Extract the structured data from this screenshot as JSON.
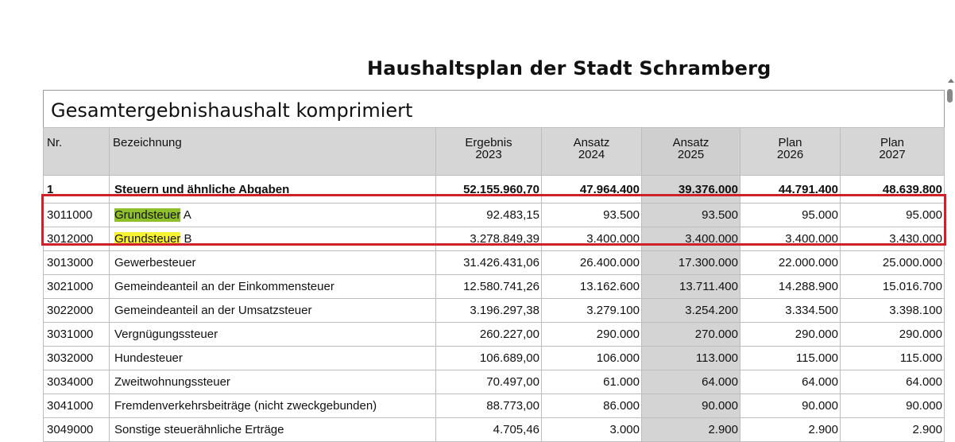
{
  "document": {
    "title": "Haushaltsplan der Stadt Schramberg",
    "section_title": "Gesamtergebnishaushalt komprimiert"
  },
  "table": {
    "headers": {
      "nr": "Nr.",
      "bezeichnung": "Bezeichnung",
      "cols": [
        {
          "l1": "Ergebnis",
          "l2": "2023"
        },
        {
          "l1": "Ansatz",
          "l2": "2024"
        },
        {
          "l1": "Ansatz",
          "l2": "2025"
        },
        {
          "l1": "Plan",
          "l2": "2026"
        },
        {
          "l1": "Plan",
          "l2": "2027"
        }
      ]
    },
    "rows": [
      {
        "nr": "1",
        "name": "Steuern und ähnliche Abgaben",
        "v": [
          "52.155.960,70",
          "47.964.400",
          "39.376.000",
          "44.791.400",
          "48.639.800"
        ]
      },
      {
        "nr": "3011000",
        "name_hl": "Grundsteuer",
        "name_rest": " A",
        "v": [
          "92.483,15",
          "93.500",
          "93.500",
          "95.000",
          "95.000"
        ]
      },
      {
        "nr": "3012000",
        "name_hl": "Grundsteuer",
        "name_rest": " B",
        "v": [
          "3.278.849,39",
          "3.400.000",
          "3.400.000",
          "3.400.000",
          "3.430.000"
        ]
      },
      {
        "nr": "3013000",
        "name": "Gewerbesteuer",
        "v": [
          "31.426.431,06",
          "26.400.000",
          "17.300.000",
          "22.000.000",
          "25.000.000"
        ]
      },
      {
        "nr": "3021000",
        "name": "Gemeindeanteil an der Einkommensteuer",
        "v": [
          "12.580.741,26",
          "13.162.600",
          "13.711.400",
          "14.288.900",
          "15.016.700"
        ]
      },
      {
        "nr": "3022000",
        "name": "Gemeindeanteil an der Umsatzsteuer",
        "v": [
          "3.196.297,38",
          "3.279.100",
          "3.254.200",
          "3.334.500",
          "3.398.100"
        ]
      },
      {
        "nr": "3031000",
        "name": "Vergnügungssteuer",
        "v": [
          "260.227,00",
          "290.000",
          "270.000",
          "290.000",
          "290.000"
        ]
      },
      {
        "nr": "3032000",
        "name": "Hundesteuer",
        "v": [
          "106.689,00",
          "106.000",
          "113.000",
          "115.000",
          "115.000"
        ]
      },
      {
        "nr": "3034000",
        "name": "Zweitwohnungssteuer",
        "v": [
          "70.497,00",
          "61.000",
          "64.000",
          "64.000",
          "64.000"
        ]
      },
      {
        "nr": "3041000",
        "name": "Fremdenverkehrsbeiträge (nicht zweckgebunden)",
        "v": [
          "88.773,00",
          "86.000",
          "90.000",
          "90.000",
          "90.000"
        ]
      },
      {
        "nr": "3049000",
        "name": "Sonstige steuerähnliche Erträge",
        "v": [
          "4.705,46",
          "3.000",
          "2.900",
          "2.900",
          "2.900"
        ]
      }
    ]
  },
  "colors": {
    "highlight_green": "#8fbf2a",
    "highlight_yellow": "#f7f233",
    "red_box": "#d0202a",
    "shaded_column": "#d4d4d4"
  }
}
